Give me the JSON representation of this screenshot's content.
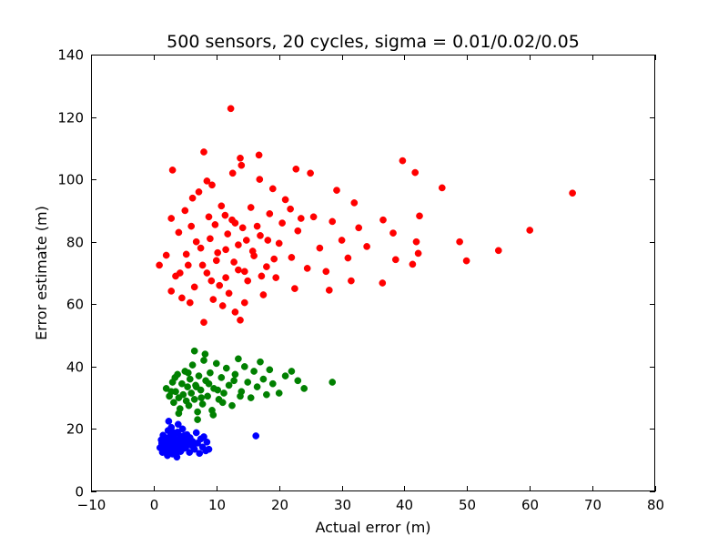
{
  "chart_data": {
    "type": "scatter",
    "title": "500 sensors, 20 cycles, sigma = 0.01/0.02/0.05",
    "xlabel": "Actual error (m)",
    "ylabel": "Error estimate (m)",
    "xlim": [
      -10,
      80
    ],
    "ylim": [
      0,
      140
    ],
    "xticks": [
      "−10",
      "0",
      "10",
      "20",
      "30",
      "40",
      "50",
      "60",
      "70",
      "80"
    ],
    "yticks": [
      "0",
      "20",
      "40",
      "60",
      "80",
      "100",
      "120",
      "140"
    ],
    "grid": false,
    "legend": "none",
    "series": [
      {
        "color": "#0000ff",
        "points": [
          [
            1.0,
            14.0
          ],
          [
            1.2,
            16.5
          ],
          [
            1.4,
            12.5
          ],
          [
            1.5,
            18.0
          ],
          [
            1.7,
            15.0
          ],
          [
            1.8,
            13.2
          ],
          [
            2.0,
            17.0
          ],
          [
            2.1,
            14.8
          ],
          [
            2.2,
            11.5
          ],
          [
            2.3,
            19.5
          ],
          [
            2.5,
            16.0
          ],
          [
            2.6,
            13.5
          ],
          [
            2.7,
            15.5
          ],
          [
            2.8,
            20.5
          ],
          [
            3.0,
            12.0
          ],
          [
            3.0,
            17.5
          ],
          [
            3.2,
            14.2
          ],
          [
            3.3,
            16.8
          ],
          [
            3.4,
            18.5
          ],
          [
            3.5,
            13.0
          ],
          [
            3.6,
            15.8
          ],
          [
            3.7,
            11.0
          ],
          [
            3.8,
            19.0
          ],
          [
            4.0,
            14.5
          ],
          [
            4.1,
            16.2
          ],
          [
            4.2,
            17.8
          ],
          [
            4.3,
            12.8
          ],
          [
            4.5,
            15.2
          ],
          [
            4.6,
            20.0
          ],
          [
            4.8,
            13.8
          ],
          [
            5.0,
            16.5
          ],
          [
            5.1,
            14.0
          ],
          [
            5.3,
            18.2
          ],
          [
            5.5,
            15.0
          ],
          [
            5.7,
            12.5
          ],
          [
            5.8,
            17.2
          ],
          [
            6.0,
            14.8
          ],
          [
            6.2,
            16.0
          ],
          [
            6.5,
            13.5
          ],
          [
            6.8,
            18.8
          ],
          [
            7.0,
            15.5
          ],
          [
            7.3,
            12.2
          ],
          [
            7.5,
            16.8
          ],
          [
            7.8,
            14.2
          ],
          [
            8.0,
            17.5
          ],
          [
            8.3,
            13.0
          ],
          [
            8.5,
            15.8
          ],
          [
            8.8,
            13.5
          ],
          [
            2.4,
            22.5
          ],
          [
            3.9,
            21.5
          ],
          [
            1.6,
            13.8
          ],
          [
            2.9,
            15.9
          ],
          [
            3.6,
            14.6
          ],
          [
            4.4,
            16.6
          ],
          [
            5.2,
            15.6
          ],
          [
            2.0,
            12.4
          ],
          [
            3.1,
            18.9
          ],
          [
            4.7,
            15.1
          ],
          [
            2.6,
            17.7
          ],
          [
            3.4,
            13.3
          ],
          [
            1.3,
            15.4
          ],
          [
            5.6,
            16.9
          ],
          [
            6.3,
            14.4
          ],
          [
            2.2,
            16.1
          ],
          [
            3.8,
            12.6
          ],
          [
            4.9,
            17.9
          ],
          [
            16.3,
            17.8
          ]
        ]
      },
      {
        "color": "#008000",
        "points": [
          [
            2.0,
            33.0
          ],
          [
            2.5,
            30.5
          ],
          [
            3.0,
            35.0
          ],
          [
            3.2,
            28.5
          ],
          [
            3.5,
            32.0
          ],
          [
            3.8,
            37.5
          ],
          [
            4.0,
            30.0
          ],
          [
            4.2,
            26.5
          ],
          [
            4.5,
            34.5
          ],
          [
            4.7,
            31.0
          ],
          [
            5.0,
            38.5
          ],
          [
            5.2,
            29.0
          ],
          [
            5.4,
            33.5
          ],
          [
            5.6,
            27.5
          ],
          [
            5.8,
            36.0
          ],
          [
            6.0,
            31.5
          ],
          [
            6.2,
            40.5
          ],
          [
            6.5,
            29.5
          ],
          [
            6.7,
            34.0
          ],
          [
            7.0,
            25.5
          ],
          [
            7.2,
            37.0
          ],
          [
            7.5,
            32.5
          ],
          [
            7.8,
            28.0
          ],
          [
            8.0,
            42.0
          ],
          [
            8.3,
            35.5
          ],
          [
            8.6,
            30.5
          ],
          [
            9.0,
            38.0
          ],
          [
            9.3,
            26.0
          ],
          [
            9.6,
            33.0
          ],
          [
            10.0,
            41.0
          ],
          [
            10.4,
            29.5
          ],
          [
            10.8,
            36.5
          ],
          [
            11.2,
            31.5
          ],
          [
            11.6,
            39.5
          ],
          [
            12.0,
            34.0
          ],
          [
            12.5,
            27.5
          ],
          [
            13.0,
            37.5
          ],
          [
            13.5,
            42.5
          ],
          [
            14.0,
            32.0
          ],
          [
            14.5,
            40.0
          ],
          [
            15.0,
            35.0
          ],
          [
            15.5,
            30.0
          ],
          [
            16.0,
            38.5
          ],
          [
            16.5,
            33.5
          ],
          [
            17.0,
            41.5
          ],
          [
            17.5,
            36.0
          ],
          [
            18.0,
            31.0
          ],
          [
            18.5,
            39.0
          ],
          [
            19.0,
            34.5
          ],
          [
            20.0,
            31.5
          ],
          [
            21.0,
            37.0
          ],
          [
            22.0,
            38.5
          ],
          [
            23.0,
            35.5
          ],
          [
            24.0,
            33.0
          ],
          [
            28.5,
            35.0
          ],
          [
            6.5,
            45.0
          ],
          [
            8.2,
            44.0
          ],
          [
            4.0,
            25.0
          ],
          [
            7.0,
            23.0
          ],
          [
            9.5,
            24.5
          ],
          [
            3.4,
            36.5
          ],
          [
            5.5,
            38.0
          ],
          [
            6.8,
            33.5
          ],
          [
            7.6,
            30.0
          ],
          [
            8.8,
            34.5
          ],
          [
            10.2,
            32.5
          ],
          [
            11.0,
            28.5
          ],
          [
            12.8,
            35.5
          ],
          [
            13.8,
            30.5
          ],
          [
            2.8,
            32.0
          ]
        ]
      },
      {
        "color": "#ff0000",
        "points": [
          [
            12.3,
            122.7
          ],
          [
            8.0,
            108.8
          ],
          [
            16.8,
            107.8
          ],
          [
            13.8,
            106.8
          ],
          [
            39.7,
            106.0
          ],
          [
            14.0,
            104.5
          ],
          [
            3.0,
            103.0
          ],
          [
            22.7,
            103.3
          ],
          [
            41.7,
            102.2
          ],
          [
            25.0,
            102.0
          ],
          [
            12.6,
            102.0
          ],
          [
            16.9,
            100.0
          ],
          [
            8.5,
            99.5
          ],
          [
            46.0,
            97.3
          ],
          [
            66.8,
            95.6
          ],
          [
            9.3,
            98.2
          ],
          [
            19.0,
            97.0
          ],
          [
            29.2,
            96.5
          ],
          [
            7.2,
            96.0
          ],
          [
            32.0,
            92.5
          ],
          [
            15.5,
            91.0
          ],
          [
            5.0,
            90.0
          ],
          [
            21.0,
            93.5
          ],
          [
            42.4,
            88.3
          ],
          [
            2.8,
            87.5
          ],
          [
            36.6,
            87.0
          ],
          [
            28.5,
            86.5
          ],
          [
            11.4,
            88.5
          ],
          [
            18.5,
            89.0
          ],
          [
            25.5,
            88.0
          ],
          [
            6.0,
            85.0
          ],
          [
            13.0,
            86.0
          ],
          [
            32.7,
            84.5
          ],
          [
            60.0,
            83.7
          ],
          [
            38.2,
            82.8
          ],
          [
            4.0,
            83.0
          ],
          [
            23.0,
            83.5
          ],
          [
            17.0,
            82.0
          ],
          [
            9.0,
            81.0
          ],
          [
            41.9,
            80.0
          ],
          [
            48.8,
            80.0
          ],
          [
            14.8,
            80.5
          ],
          [
            20.0,
            79.5
          ],
          [
            30.0,
            80.5
          ],
          [
            34.0,
            78.5
          ],
          [
            26.5,
            78.0
          ],
          [
            7.5,
            78.0
          ],
          [
            11.5,
            77.5
          ],
          [
            55.0,
            77.2
          ],
          [
            42.2,
            76.3
          ],
          [
            2.0,
            75.7
          ],
          [
            16.0,
            75.5
          ],
          [
            22.0,
            75.0
          ],
          [
            31.0,
            74.8
          ],
          [
            38.6,
            74.3
          ],
          [
            49.9,
            73.9
          ],
          [
            10.0,
            74.0
          ],
          [
            5.5,
            72.5
          ],
          [
            41.3,
            72.8
          ],
          [
            0.9,
            72.5
          ],
          [
            18.0,
            72.0
          ],
          [
            24.5,
            71.5
          ],
          [
            27.5,
            70.5
          ],
          [
            13.5,
            71.0
          ],
          [
            8.5,
            70.0
          ],
          [
            3.5,
            69.0
          ],
          [
            19.5,
            68.5
          ],
          [
            15.0,
            67.5
          ],
          [
            31.5,
            67.5
          ],
          [
            36.5,
            66.8
          ],
          [
            10.5,
            66.0
          ],
          [
            6.5,
            65.5
          ],
          [
            22.5,
            65.0
          ],
          [
            2.8,
            64.2
          ],
          [
            28.0,
            64.5
          ],
          [
            12.0,
            63.5
          ],
          [
            17.5,
            63.0
          ],
          [
            4.5,
            62.0
          ],
          [
            9.5,
            61.5
          ],
          [
            14.5,
            60.5
          ],
          [
            5.8,
            60.5
          ],
          [
            11.0,
            59.5
          ],
          [
            13.0,
            57.5
          ],
          [
            8.0,
            54.2
          ],
          [
            13.8,
            54.9
          ],
          [
            6.2,
            94.0
          ],
          [
            10.8,
            91.5
          ],
          [
            12.5,
            87.0
          ],
          [
            14.2,
            84.5
          ],
          [
            9.8,
            85.5
          ],
          [
            11.8,
            82.5
          ],
          [
            13.5,
            79.0
          ],
          [
            10.2,
            76.5
          ],
          [
            12.8,
            73.5
          ],
          [
            14.5,
            70.5
          ],
          [
            7.8,
            72.5
          ],
          [
            11.5,
            68.5
          ],
          [
            15.8,
            77.0
          ],
          [
            16.5,
            85.0
          ],
          [
            18.2,
            80.5
          ],
          [
            20.5,
            86.0
          ],
          [
            21.8,
            90.5
          ],
          [
            19.2,
            74.5
          ],
          [
            17.2,
            69.0
          ],
          [
            9.2,
            67.5
          ],
          [
            6.8,
            80.0
          ],
          [
            5.2,
            76.0
          ],
          [
            4.2,
            70.0
          ],
          [
            8.8,
            88.0
          ],
          [
            23.5,
            87.5
          ]
        ]
      }
    ]
  }
}
